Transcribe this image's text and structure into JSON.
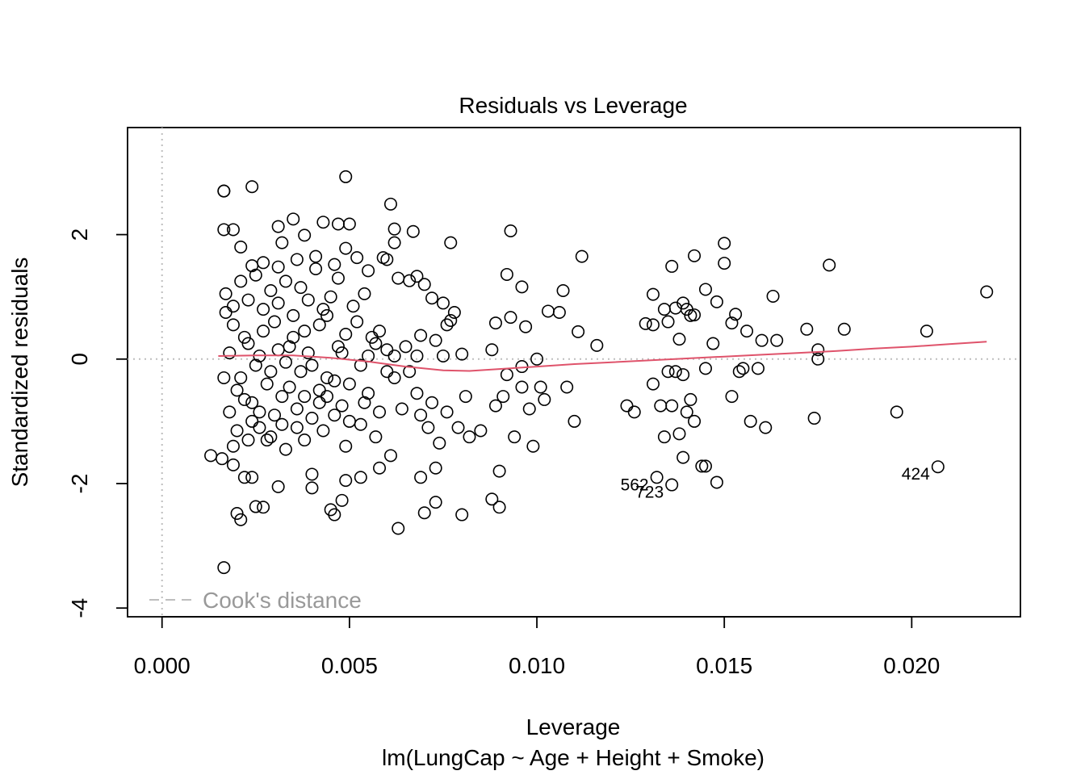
{
  "chart_data": {
    "type": "scatter",
    "title": "Residuals vs Leverage",
    "xlabel": "Leverage",
    "subtitle": "lm(LungCap ~ Age + Height + Smoke)",
    "ylabel": "Standardized residuals",
    "xlim": [
      -0.00092,
      0.0229
    ],
    "ylim": [
      -4.14,
      3.72
    ],
    "x_ticks": [
      0.0,
      0.005,
      0.01,
      0.015,
      0.02
    ],
    "x_tick_labels": [
      "0.000",
      "0.005",
      "0.010",
      "0.015",
      "0.020"
    ],
    "y_ticks": [
      -4,
      -2,
      0,
      2
    ],
    "y_tick_labels": [
      "-4",
      "-2",
      "0",
      "2"
    ],
    "legend": {
      "label": "Cook's distance",
      "placement": "bottom-left"
    },
    "grid": false,
    "colors": {
      "points": "#000000",
      "smooth": "#DF536B",
      "reference": "#BEBEBE"
    },
    "points": [
      [
        0.00165,
        -3.35
      ],
      [
        0.00165,
        2.7
      ],
      [
        0.00165,
        2.7
      ],
      [
        0.0024,
        2.77
      ],
      [
        0.0049,
        2.93
      ],
      [
        0.0061,
        2.49
      ],
      [
        0.00165,
        2.08
      ],
      [
        0.0019,
        2.08
      ],
      [
        0.0031,
        2.13
      ],
      [
        0.0035,
        2.25
      ],
      [
        0.0043,
        2.2
      ],
      [
        0.0047,
        2.17
      ],
      [
        0.005,
        2.17
      ],
      [
        0.0062,
        2.09
      ],
      [
        0.0067,
        2.05
      ],
      [
        0.0077,
        1.87
      ],
      [
        0.0093,
        2.06
      ],
      [
        0.0038,
        1.99
      ],
      [
        0.0021,
        1.8
      ],
      [
        0.0032,
        1.87
      ],
      [
        0.0049,
        1.78
      ],
      [
        0.0052,
        1.63
      ],
      [
        0.0059,
        1.63
      ],
      [
        0.0062,
        1.87
      ],
      [
        0.0024,
        1.5
      ],
      [
        0.0027,
        1.55
      ],
      [
        0.0031,
        1.48
      ],
      [
        0.0036,
        1.6
      ],
      [
        0.0041,
        1.65
      ],
      [
        0.0046,
        1.52
      ],
      [
        0.0055,
        1.42
      ],
      [
        0.006,
        1.6
      ],
      [
        0.0063,
        1.3
      ],
      [
        0.0066,
        1.26
      ],
      [
        0.0068,
        1.33
      ],
      [
        0.007,
        1.2
      ],
      [
        0.0092,
        1.36
      ],
      [
        0.0096,
        1.16
      ],
      [
        0.0107,
        1.1
      ],
      [
        0.0112,
        1.65
      ],
      [
        0.0131,
        1.04
      ],
      [
        0.0136,
        1.49
      ],
      [
        0.0142,
        1.66
      ],
      [
        0.0145,
        1.12
      ],
      [
        0.015,
        1.86
      ],
      [
        0.015,
        1.54
      ],
      [
        0.0163,
        1.01
      ],
      [
        0.0178,
        1.51
      ],
      [
        0.022,
        1.08
      ],
      [
        0.0072,
        0.98
      ],
      [
        0.0075,
        0.9
      ],
      [
        0.0078,
        0.75
      ],
      [
        0.0077,
        0.62
      ],
      [
        0.0076,
        0.55
      ],
      [
        0.0089,
        0.58
      ],
      [
        0.0093,
        0.67
      ],
      [
        0.0097,
        0.52
      ],
      [
        0.0103,
        0.77
      ],
      [
        0.0106,
        0.75
      ],
      [
        0.0111,
        0.44
      ],
      [
        0.0116,
        0.22
      ],
      [
        0.0129,
        0.57
      ],
      [
        0.0131,
        0.55
      ],
      [
        0.0134,
        0.8
      ],
      [
        0.0135,
        0.6
      ],
      [
        0.0137,
        0.82
      ],
      [
        0.0138,
        0.32
      ],
      [
        0.0139,
        0.9
      ],
      [
        0.014,
        0.8
      ],
      [
        0.0141,
        0.7
      ],
      [
        0.0142,
        0.71
      ],
      [
        0.0147,
        0.25
      ],
      [
        0.0148,
        0.92
      ],
      [
        0.0152,
        0.58
      ],
      [
        0.0153,
        0.72
      ],
      [
        0.0156,
        0.45
      ],
      [
        0.016,
        0.3
      ],
      [
        0.0164,
        0.3
      ],
      [
        0.0172,
        0.48
      ],
      [
        0.0175,
        0.15
      ],
      [
        0.0182,
        0.48
      ],
      [
        0.0204,
        0.45
      ],
      [
        0.0175,
        0.0
      ],
      [
        0.01,
        0.0
      ],
      [
        0.0096,
        -0.12
      ],
      [
        0.0088,
        0.15
      ],
      [
        0.008,
        0.08
      ],
      [
        0.0075,
        0.05
      ],
      [
        0.0073,
        0.3
      ],
      [
        0.0069,
        0.38
      ],
      [
        0.0068,
        0.05
      ],
      [
        0.0065,
        0.2
      ],
      [
        0.0062,
        0.05
      ],
      [
        0.006,
        -0.2
      ],
      [
        0.0058,
        0.45
      ],
      [
        0.0057,
        0.25
      ],
      [
        0.0055,
        0.05
      ],
      [
        0.0053,
        -0.1
      ],
      [
        0.0049,
        0.4
      ],
      [
        0.0047,
        0.2
      ],
      [
        0.0044,
        -0.3
      ],
      [
        0.0042,
        0.55
      ],
      [
        0.0039,
        0.1
      ],
      [
        0.0037,
        -0.2
      ],
      [
        0.0035,
        0.35
      ],
      [
        0.0033,
        -0.05
      ],
      [
        0.0031,
        0.15
      ],
      [
        0.0029,
        -0.2
      ],
      [
        0.0027,
        0.45
      ],
      [
        0.0025,
        -0.1
      ],
      [
        0.0023,
        0.25
      ],
      [
        0.0021,
        -0.3
      ],
      [
        0.0019,
        0.55
      ],
      [
        0.0017,
        0.75
      ],
      [
        0.00165,
        -0.3
      ],
      [
        0.0018,
        0.1
      ],
      [
        0.002,
        -0.5
      ],
      [
        0.0022,
        0.35
      ],
      [
        0.0024,
        -0.7
      ],
      [
        0.0026,
        0.05
      ],
      [
        0.0028,
        -0.4
      ],
      [
        0.003,
        0.6
      ],
      [
        0.0032,
        -0.6
      ],
      [
        0.0034,
        0.2
      ],
      [
        0.0036,
        -0.8
      ],
      [
        0.0038,
        0.45
      ],
      [
        0.004,
        -0.1
      ],
      [
        0.0042,
        -0.5
      ],
      [
        0.0044,
        0.7
      ],
      [
        0.0046,
        -0.9
      ],
      [
        0.0048,
        0.1
      ],
      [
        0.005,
        -0.4
      ],
      [
        0.0052,
        0.6
      ],
      [
        0.0054,
        -0.7
      ],
      [
        0.0056,
        0.35
      ],
      [
        0.0058,
        -0.85
      ],
      [
        0.006,
        0.15
      ],
      [
        0.0062,
        -0.3
      ],
      [
        0.0064,
        -0.8
      ],
      [
        0.0066,
        -0.2
      ],
      [
        0.0068,
        -0.55
      ],
      [
        0.0069,
        -0.9
      ],
      [
        0.0071,
        -1.1
      ],
      [
        0.0072,
        -0.7
      ],
      [
        0.0074,
        -1.35
      ],
      [
        0.0076,
        -0.85
      ],
      [
        0.0079,
        -1.1
      ],
      [
        0.0081,
        -0.6
      ],
      [
        0.0082,
        -1.25
      ],
      [
        0.0085,
        -1.15
      ],
      [
        0.0089,
        -0.75
      ],
      [
        0.0091,
        -0.6
      ],
      [
        0.0092,
        -0.25
      ],
      [
        0.0094,
        -1.25
      ],
      [
        0.0096,
        -0.45
      ],
      [
        0.0098,
        -0.8
      ],
      [
        0.0099,
        -1.4
      ],
      [
        0.0101,
        -0.45
      ],
      [
        0.0102,
        -0.65
      ],
      [
        0.0108,
        -0.45
      ],
      [
        0.011,
        -1.0
      ],
      [
        0.0124,
        -0.75
      ],
      [
        0.0126,
        -0.85
      ],
      [
        0.0131,
        -0.4
      ],
      [
        0.0133,
        -0.75
      ],
      [
        0.0134,
        -1.25
      ],
      [
        0.0135,
        -0.2
      ],
      [
        0.0136,
        -0.75
      ],
      [
        0.0137,
        -0.2
      ],
      [
        0.0138,
        -1.2
      ],
      [
        0.0139,
        -0.25
      ],
      [
        0.014,
        -0.85
      ],
      [
        0.0141,
        -0.65
      ],
      [
        0.0142,
        -1.0
      ],
      [
        0.0145,
        -0.15
      ],
      [
        0.0152,
        -0.6
      ],
      [
        0.0154,
        -0.2
      ],
      [
        0.0155,
        -0.15
      ],
      [
        0.0157,
        -1.0
      ],
      [
        0.0159,
        -0.15
      ],
      [
        0.0161,
        -1.1
      ],
      [
        0.0174,
        -0.95
      ],
      [
        0.0196,
        -0.85
      ],
      [
        0.0013,
        -1.55
      ],
      [
        0.0016,
        -1.6
      ],
      [
        0.0019,
        -1.7
      ],
      [
        0.0022,
        -1.9
      ],
      [
        0.0024,
        -1.9
      ],
      [
        0.0031,
        -2.05
      ],
      [
        0.004,
        -1.85
      ],
      [
        0.004,
        -2.07
      ],
      [
        0.0045,
        -2.42
      ],
      [
        0.0046,
        -2.5
      ],
      [
        0.0048,
        -2.27
      ],
      [
        0.0049,
        -1.95
      ],
      [
        0.0053,
        -1.9
      ],
      [
        0.0058,
        -1.75
      ],
      [
        0.0063,
        -2.72
      ],
      [
        0.0069,
        -1.9
      ],
      [
        0.0073,
        -1.75
      ],
      [
        0.007,
        -2.47
      ],
      [
        0.0073,
        -2.3
      ],
      [
        0.008,
        -2.5
      ],
      [
        0.0088,
        -2.25
      ],
      [
        0.009,
        -2.38
      ],
      [
        0.009,
        -1.8
      ],
      [
        0.002,
        -2.48
      ],
      [
        0.0021,
        -2.58
      ],
      [
        0.0025,
        -2.37
      ],
      [
        0.0027,
        -2.38
      ],
      [
        0.0019,
        -1.4
      ],
      [
        0.0023,
        -1.3
      ],
      [
        0.0026,
        -1.1
      ],
      [
        0.0029,
        -1.25
      ],
      [
        0.0033,
        -1.45
      ],
      [
        0.0038,
        -1.3
      ],
      [
        0.0043,
        -1.15
      ],
      [
        0.0049,
        -1.4
      ],
      [
        0.0053,
        -1.05
      ],
      [
        0.0057,
        -1.25
      ],
      [
        0.0061,
        -1.55
      ],
      [
        0.0132,
        -1.9
      ],
      [
        0.0136,
        -2.02
      ],
      [
        0.0139,
        -1.58
      ],
      [
        0.0144,
        -1.72
      ],
      [
        0.0145,
        -1.72
      ],
      [
        0.0148,
        -1.98
      ],
      [
        0.0207,
        -1.73
      ],
      [
        0.0017,
        1.05
      ],
      [
        0.0019,
        0.85
      ],
      [
        0.0021,
        1.25
      ],
      [
        0.0023,
        0.95
      ],
      [
        0.0025,
        1.35
      ],
      [
        0.0027,
        0.8
      ],
      [
        0.0029,
        1.1
      ],
      [
        0.0031,
        0.9
      ],
      [
        0.0033,
        1.25
      ],
      [
        0.0035,
        0.7
      ],
      [
        0.0037,
        1.15
      ],
      [
        0.0039,
        0.95
      ],
      [
        0.0041,
        1.45
      ],
      [
        0.0043,
        0.8
      ],
      [
        0.0045,
        1.0
      ],
      [
        0.0047,
        1.3
      ],
      [
        0.0051,
        0.85
      ],
      [
        0.0054,
        1.05
      ],
      [
        0.0018,
        -0.85
      ],
      [
        0.002,
        -1.15
      ],
      [
        0.0022,
        -0.65
      ],
      [
        0.0024,
        -1.0
      ],
      [
        0.0026,
        -0.85
      ],
      [
        0.0028,
        -1.3
      ],
      [
        0.003,
        -0.9
      ],
      [
        0.0032,
        -1.05
      ],
      [
        0.0034,
        -0.45
      ],
      [
        0.0036,
        -1.1
      ],
      [
        0.0038,
        -0.6
      ],
      [
        0.004,
        -0.95
      ],
      [
        0.0042,
        -0.7
      ],
      [
        0.0044,
        -0.6
      ],
      [
        0.0046,
        -0.35
      ],
      [
        0.0048,
        -0.75
      ],
      [
        0.005,
        -1.0
      ],
      [
        0.0055,
        -0.55
      ]
    ],
    "point_labels": [
      {
        "label": "562",
        "x": 0.0132,
        "y": -1.9
      },
      {
        "label": "723",
        "x": 0.0136,
        "y": -2.02
      },
      {
        "label": "424",
        "x": 0.0207,
        "y": -1.73
      }
    ],
    "smooth_line": [
      [
        0.0015,
        0.05
      ],
      [
        0.0025,
        0.06
      ],
      [
        0.0035,
        0.06
      ],
      [
        0.0045,
        0.02
      ],
      [
        0.0055,
        -0.04
      ],
      [
        0.0065,
        -0.12
      ],
      [
        0.0075,
        -0.18
      ],
      [
        0.0082,
        -0.19
      ],
      [
        0.009,
        -0.16
      ],
      [
        0.01,
        -0.12
      ],
      [
        0.011,
        -0.08
      ],
      [
        0.012,
        -0.05
      ],
      [
        0.013,
        -0.02
      ],
      [
        0.014,
        0.01
      ],
      [
        0.015,
        0.04
      ],
      [
        0.016,
        0.07
      ],
      [
        0.017,
        0.1
      ],
      [
        0.018,
        0.13
      ],
      [
        0.019,
        0.17
      ],
      [
        0.02,
        0.2
      ],
      [
        0.021,
        0.24
      ],
      [
        0.022,
        0.28
      ]
    ]
  }
}
